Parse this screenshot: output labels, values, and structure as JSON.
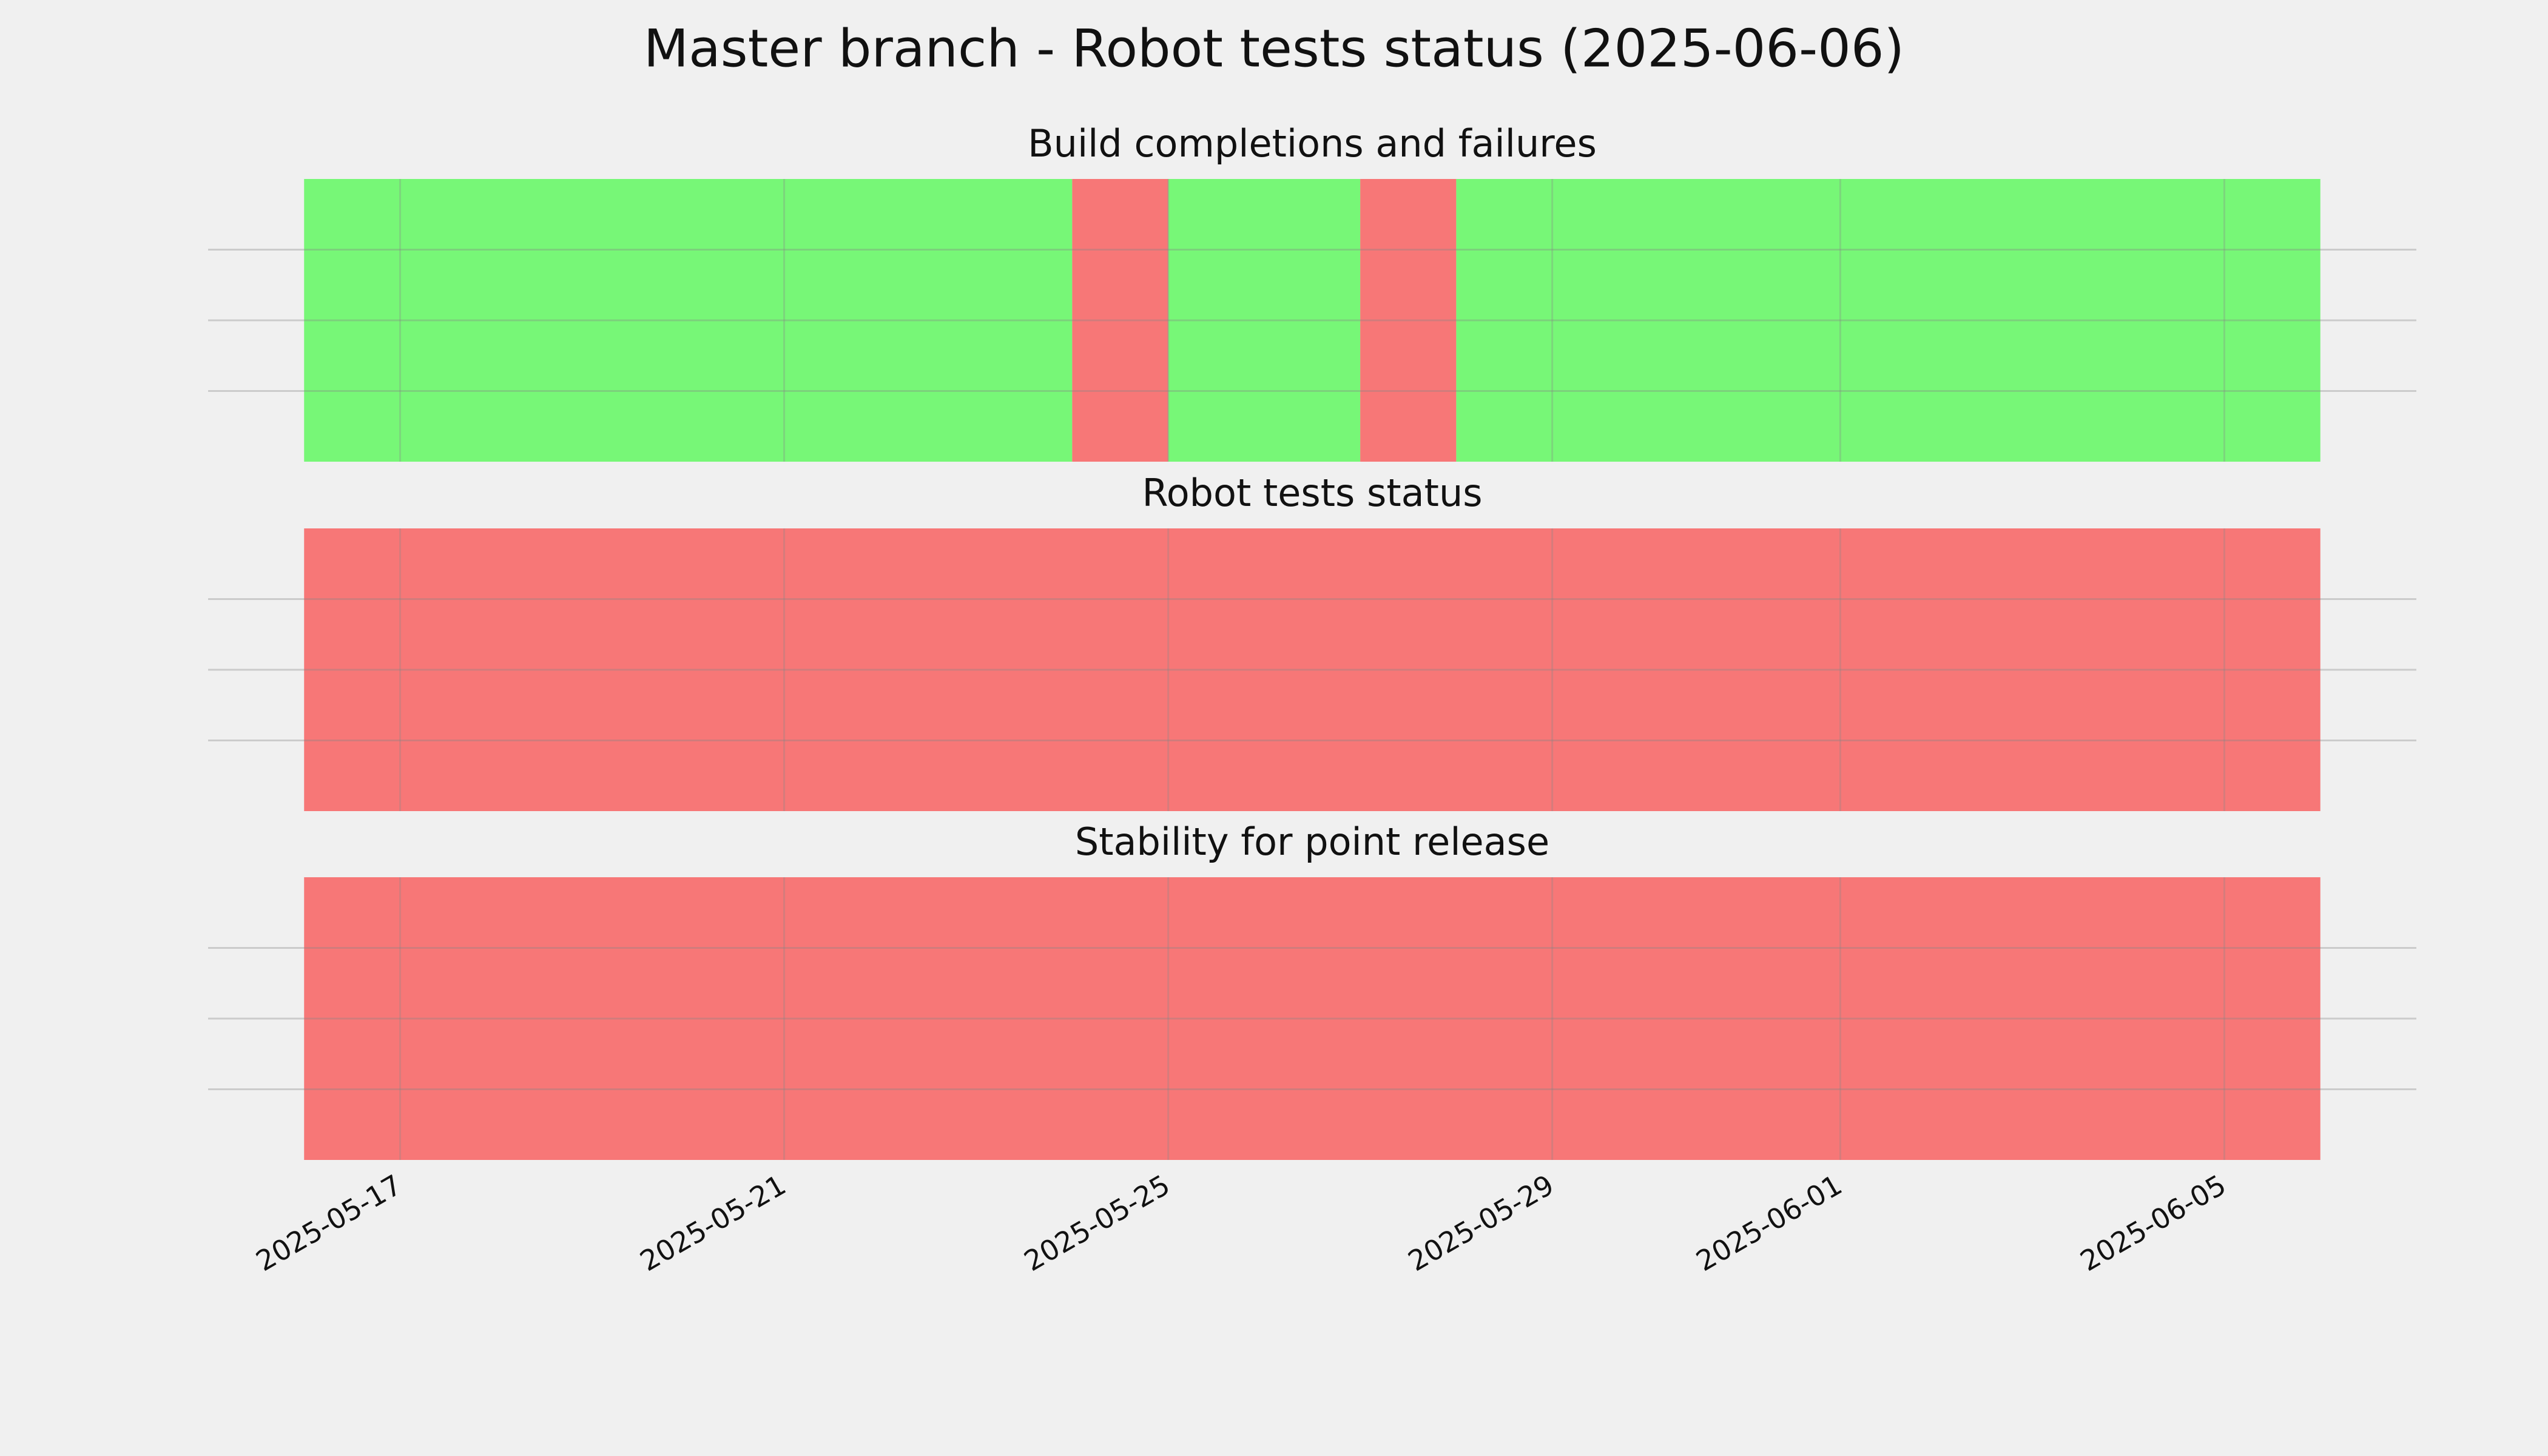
{
  "title": "Master branch - Robot tests status (2025-06-06)",
  "xlim": [
    "2025-05-15",
    "2025-06-07"
  ],
  "xticks": [
    "2025-05-17",
    "2025-05-21",
    "2025-05-25",
    "2025-05-29",
    "2025-06-01",
    "2025-06-05"
  ],
  "chart_data": [
    {
      "type": "timeline",
      "title": "Build completions and failures",
      "ylim": [
        0,
        1
      ],
      "yticks": [
        0.25,
        0.5,
        0.75
      ],
      "grid": true,
      "segments": [
        {
          "start": "2025-05-16",
          "end": "2025-05-24",
          "color": "#77f777"
        },
        {
          "start": "2025-05-24",
          "end": "2025-05-25",
          "color": "#f77777"
        },
        {
          "start": "2025-05-25",
          "end": "2025-05-27",
          "color": "#77f777"
        },
        {
          "start": "2025-05-27",
          "end": "2025-05-28",
          "color": "#f77777"
        },
        {
          "start": "2025-05-28",
          "end": "2025-06-06",
          "color": "#77f777"
        }
      ]
    },
    {
      "type": "timeline",
      "title": "Robot tests status",
      "ylim": [
        0,
        1
      ],
      "yticks": [
        0.25,
        0.5,
        0.75
      ],
      "grid": true,
      "segments": [
        {
          "start": "2025-05-16",
          "end": "2025-06-06",
          "color": "#f77777"
        }
      ]
    },
    {
      "type": "timeline",
      "title": "Stability for point release",
      "ylim": [
        0,
        1
      ],
      "yticks": [
        0.25,
        0.5,
        0.75
      ],
      "grid": true,
      "segments": [
        {
          "start": "2025-05-16",
          "end": "2025-06-06",
          "color": "#f77777"
        }
      ]
    }
  ]
}
